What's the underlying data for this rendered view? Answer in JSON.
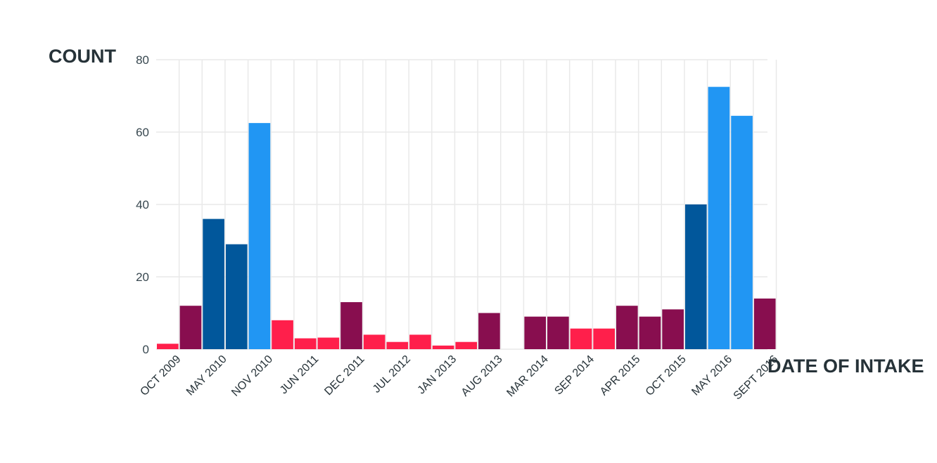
{
  "chart_data": {
    "type": "bar",
    "title": "",
    "ylabel": "COUNT",
    "xlabel": "DATE OF INTAKE",
    "ylim": [
      0,
      80
    ],
    "yticks": [
      0,
      20,
      40,
      60,
      80
    ],
    "grid": true,
    "xtick_labels": [
      "OCT 2009",
      "MAY 2010",
      "NOV 2010",
      "JUN 2011",
      "DEC 2011",
      "JUL 2012",
      "JAN 2013",
      "AUG 2013",
      "MAR 2014",
      "SEP 2014",
      "APR 2015",
      "OCT 2015",
      "MAY 2016",
      "SEPT 2016"
    ],
    "bar_colors": [
      "#ff1f4b",
      "#880e4f",
      "#01579b",
      "#01579b",
      "#2196f3",
      "#ff1f4b",
      "#ff1f4b",
      "#ff1f4b",
      "#880e4f",
      "#ff1f4b",
      "#ff1f4b",
      "#ff1f4b",
      "#ff1f4b",
      "#ff1f4b",
      "#880e4f",
      "#ff1f4b",
      "#880e4f",
      "#880e4f",
      "#ff1f4b",
      "#ff1f4b",
      "#880e4f",
      "#880e4f",
      "#880e4f",
      "#01579b",
      "#2196f3",
      "#2196f3",
      "#880e4f"
    ],
    "values": [
      1.5,
      12,
      36,
      29,
      62.5,
      8,
      3,
      3.2,
      13,
      4,
      2,
      4,
      1,
      2,
      10,
      0,
      9,
      9,
      5.7,
      5.7,
      12,
      9,
      11,
      40,
      72.5,
      64.5,
      14
    ]
  }
}
